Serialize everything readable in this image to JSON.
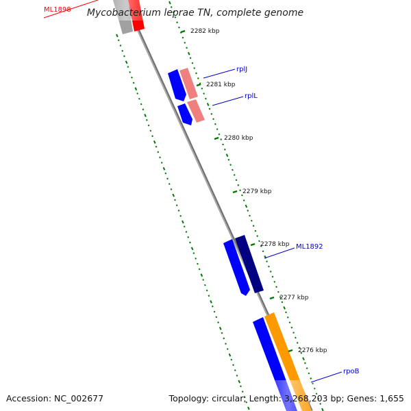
{
  "title": "Mycobacterium leprae TN, complete genome",
  "footer": {
    "accession": "Accession: NC_002677",
    "stats": "Topology: circular; Length: 3,268,203 bp; Genes: 1,655"
  },
  "ticks": [
    {
      "label": "2282 kbp"
    },
    {
      "label": "2281 kbp"
    },
    {
      "label": "2280 kbp"
    },
    {
      "label": "2279 kbp"
    },
    {
      "label": "2278 kbp"
    },
    {
      "label": "2277 kbp"
    },
    {
      "label": "2276 kbp"
    }
  ],
  "genes": [
    {
      "label": "ML1898",
      "color": "#ff0000"
    },
    {
      "label": "rplJ",
      "color": "#0000cc"
    },
    {
      "label": "rplL",
      "color": "#0000cc"
    },
    {
      "label": "ML1892",
      "color": "#0000cc"
    },
    {
      "label": "rpoB",
      "color": "#0000cc"
    }
  ],
  "colors": {
    "backbone": "#888888",
    "tick": "#007700",
    "forward_gene": "#0000ff",
    "reverse_gene": "#f08080",
    "dark_gene": "#000080",
    "orange_gene": "#ff9900"
  }
}
